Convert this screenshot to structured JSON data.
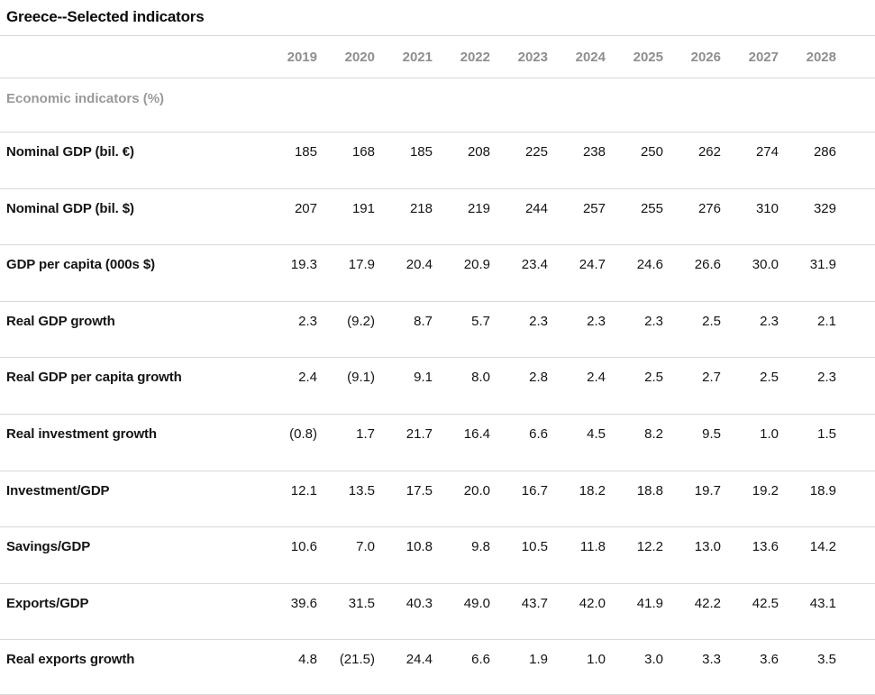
{
  "table": {
    "title": "Greece--Selected indicators",
    "section_header": "Economic indicators (%)",
    "years": [
      "2019",
      "2020",
      "2021",
      "2022",
      "2023",
      "2024",
      "2025",
      "2026",
      "2027",
      "2028"
    ],
    "rows": [
      {
        "label": "Nominal GDP (bil. €)",
        "values": [
          "185",
          "168",
          "185",
          "208",
          "225",
          "238",
          "250",
          "262",
          "274",
          "286"
        ]
      },
      {
        "label": "Nominal GDP (bil. $)",
        "values": [
          "207",
          "191",
          "218",
          "219",
          "244",
          "257",
          "255",
          "276",
          "310",
          "329"
        ]
      },
      {
        "label": "GDP per capita (000s $)",
        "values": [
          "19.3",
          "17.9",
          "20.4",
          "20.9",
          "23.4",
          "24.7",
          "24.6",
          "26.6",
          "30.0",
          "31.9"
        ]
      },
      {
        "label": "Real GDP growth",
        "values": [
          "2.3",
          "(9.2)",
          "8.7",
          "5.7",
          "2.3",
          "2.3",
          "2.3",
          "2.5",
          "2.3",
          "2.1"
        ]
      },
      {
        "label": "Real GDP per capita growth",
        "values": [
          "2.4",
          "(9.1)",
          "9.1",
          "8.0",
          "2.8",
          "2.4",
          "2.5",
          "2.7",
          "2.5",
          "2.3"
        ]
      },
      {
        "label": "Real investment growth",
        "values": [
          "(0.8)",
          "1.7",
          "21.7",
          "16.4",
          "6.6",
          "4.5",
          "8.2",
          "9.5",
          "1.0",
          "1.5"
        ]
      },
      {
        "label": "Investment/GDP",
        "values": [
          "12.1",
          "13.5",
          "17.5",
          "20.0",
          "16.7",
          "18.2",
          "18.8",
          "19.7",
          "19.2",
          "18.9"
        ]
      },
      {
        "label": "Savings/GDP",
        "values": [
          "10.6",
          "7.0",
          "10.8",
          "9.8",
          "10.5",
          "11.8",
          "12.2",
          "13.0",
          "13.6",
          "14.2"
        ]
      },
      {
        "label": "Exports/GDP",
        "values": [
          "39.6",
          "31.5",
          "40.3",
          "49.0",
          "43.7",
          "42.0",
          "41.9",
          "42.2",
          "42.5",
          "43.1"
        ]
      },
      {
        "label": "Real exports growth",
        "values": [
          "4.8",
          "(21.5)",
          "24.4",
          "6.6",
          "1.9",
          "1.0",
          "3.0",
          "3.3",
          "3.6",
          "3.5"
        ]
      }
    ]
  },
  "colors": {
    "title_text": "#0a0a0a",
    "header_text": "#8e8e8e",
    "body_text": "#141414",
    "divider": "#d9d9d9",
    "background": "#ffffff"
  }
}
